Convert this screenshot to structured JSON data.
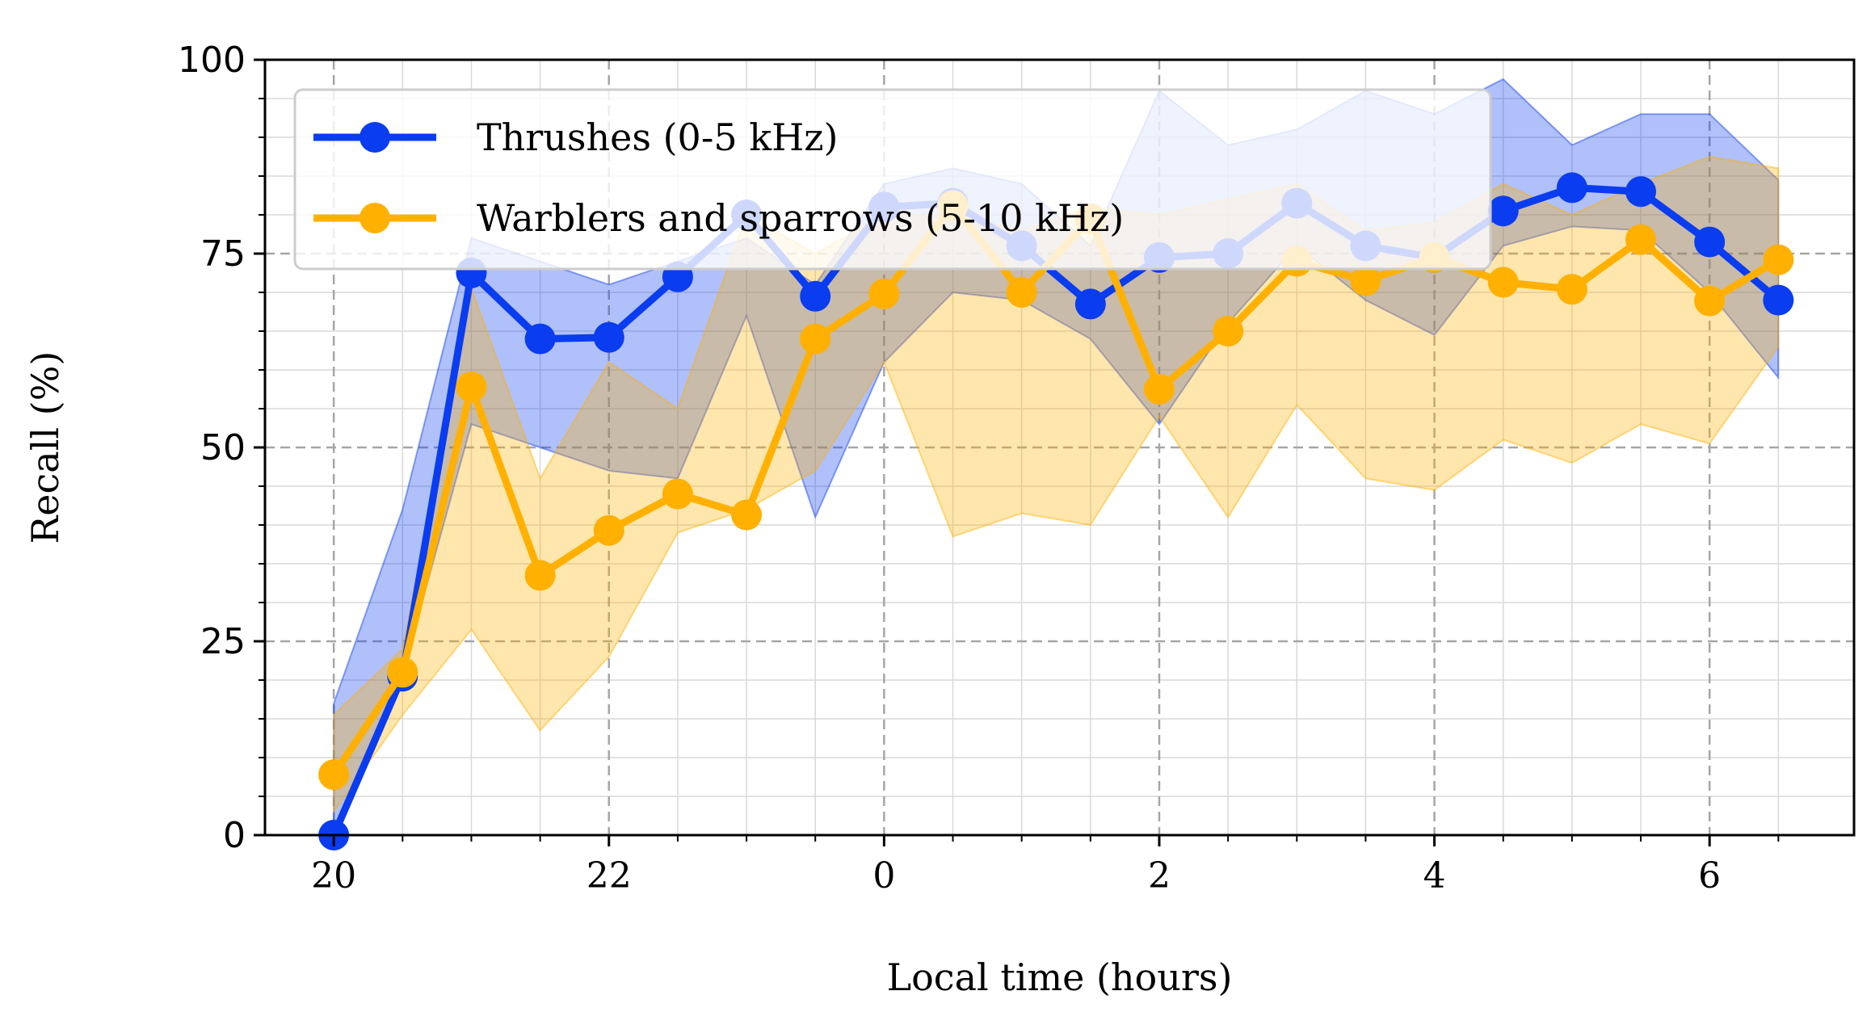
{
  "chart_data": {
    "type": "line",
    "xlabel": "Local time (hours)",
    "ylabel": "Recall (%)",
    "xlim": [
      19.5,
      31.05
    ],
    "ylim": [
      0,
      100
    ],
    "x": [
      20,
      20.5,
      21,
      21.5,
      22,
      22.5,
      23,
      23.5,
      24,
      24.5,
      25,
      25.5,
      26,
      26.5,
      27,
      27.5,
      28,
      28.5,
      29,
      29.5,
      30,
      30.5
    ],
    "x_ticks": [
      20,
      22,
      24,
      26,
      28,
      30
    ],
    "x_tick_labels": [
      "20",
      "22",
      "0",
      "2",
      "4",
      "6"
    ],
    "y_ticks": [
      0,
      25,
      50,
      75,
      100
    ],
    "y_tick_labels": [
      "0",
      "25",
      "50",
      "75",
      "100"
    ],
    "grid": true,
    "legend_position": "top-left",
    "series": [
      {
        "name": "Thrushes (0-5 kHz)",
        "color": "#0a3cf0",
        "values": [
          0,
          20.5,
          72.5,
          64,
          64.2,
          72,
          80,
          69.5,
          81,
          81.5,
          76,
          68.5,
          74.5,
          75,
          81.5,
          76,
          74.5,
          80.5,
          83.5,
          83,
          76.5,
          69
        ],
        "upper": [
          17,
          42,
          77,
          74,
          71,
          74,
          77,
          71,
          84,
          86,
          84,
          76,
          96,
          89,
          91,
          96,
          93,
          97.5,
          89,
          93,
          93,
          84.5
        ],
        "lower": [
          0,
          21,
          53,
          50,
          47,
          46,
          67,
          41,
          61,
          70,
          69,
          64,
          53,
          66,
          76,
          69,
          64.5,
          76,
          78.5,
          78,
          70,
          59
        ]
      },
      {
        "name": "Warblers and sparrows (5-10 kHz)",
        "color": "#ffb000",
        "values": [
          7.8,
          21,
          57.8,
          33.5,
          39.3,
          44,
          41.3,
          64,
          69.8,
          81.2,
          70,
          79.5,
          57.5,
          65,
          74,
          71.5,
          74.5,
          71.3,
          70.4,
          76.8,
          68.9,
          74.2
        ],
        "upper": [
          15.5,
          24,
          70.5,
          46,
          61,
          55,
          80,
          75,
          80,
          80,
          78,
          81,
          80,
          82,
          84,
          78,
          79,
          84,
          80,
          84,
          87.5,
          86
        ],
        "lower": [
          3,
          15.5,
          26.5,
          13.5,
          23,
          39,
          42,
          47,
          61,
          38.5,
          41.5,
          40,
          54,
          41,
          55.5,
          46,
          44.5,
          51,
          48,
          53,
          50.5,
          63
        ]
      }
    ]
  }
}
